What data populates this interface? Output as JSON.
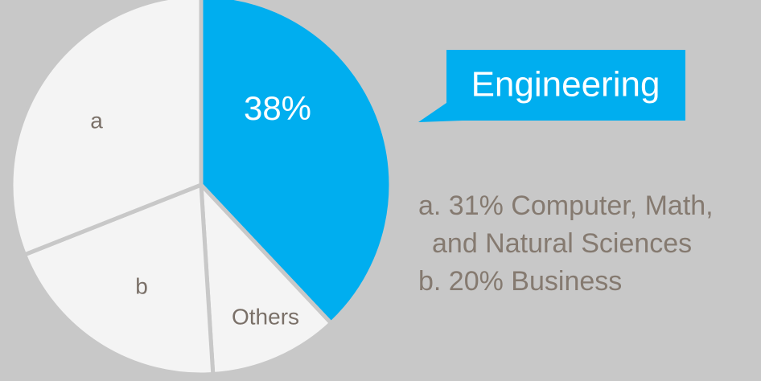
{
  "chart_data": {
    "type": "pie",
    "categories": [
      "Engineering",
      "Others",
      "b",
      "a"
    ],
    "values": [
      38,
      11,
      20,
      31
    ],
    "value_labels": [
      "38%",
      null,
      null,
      null
    ],
    "colors": [
      "#00aeef",
      "#f4f4f4",
      "#f4f4f4",
      "#f4f4f4"
    ],
    "legend": [
      {
        "lines": [
          "a. 31% Computer, Math,",
          "and Natural Sciences"
        ]
      },
      {
        "lines": [
          "b. 20% Business"
        ]
      }
    ]
  }
}
